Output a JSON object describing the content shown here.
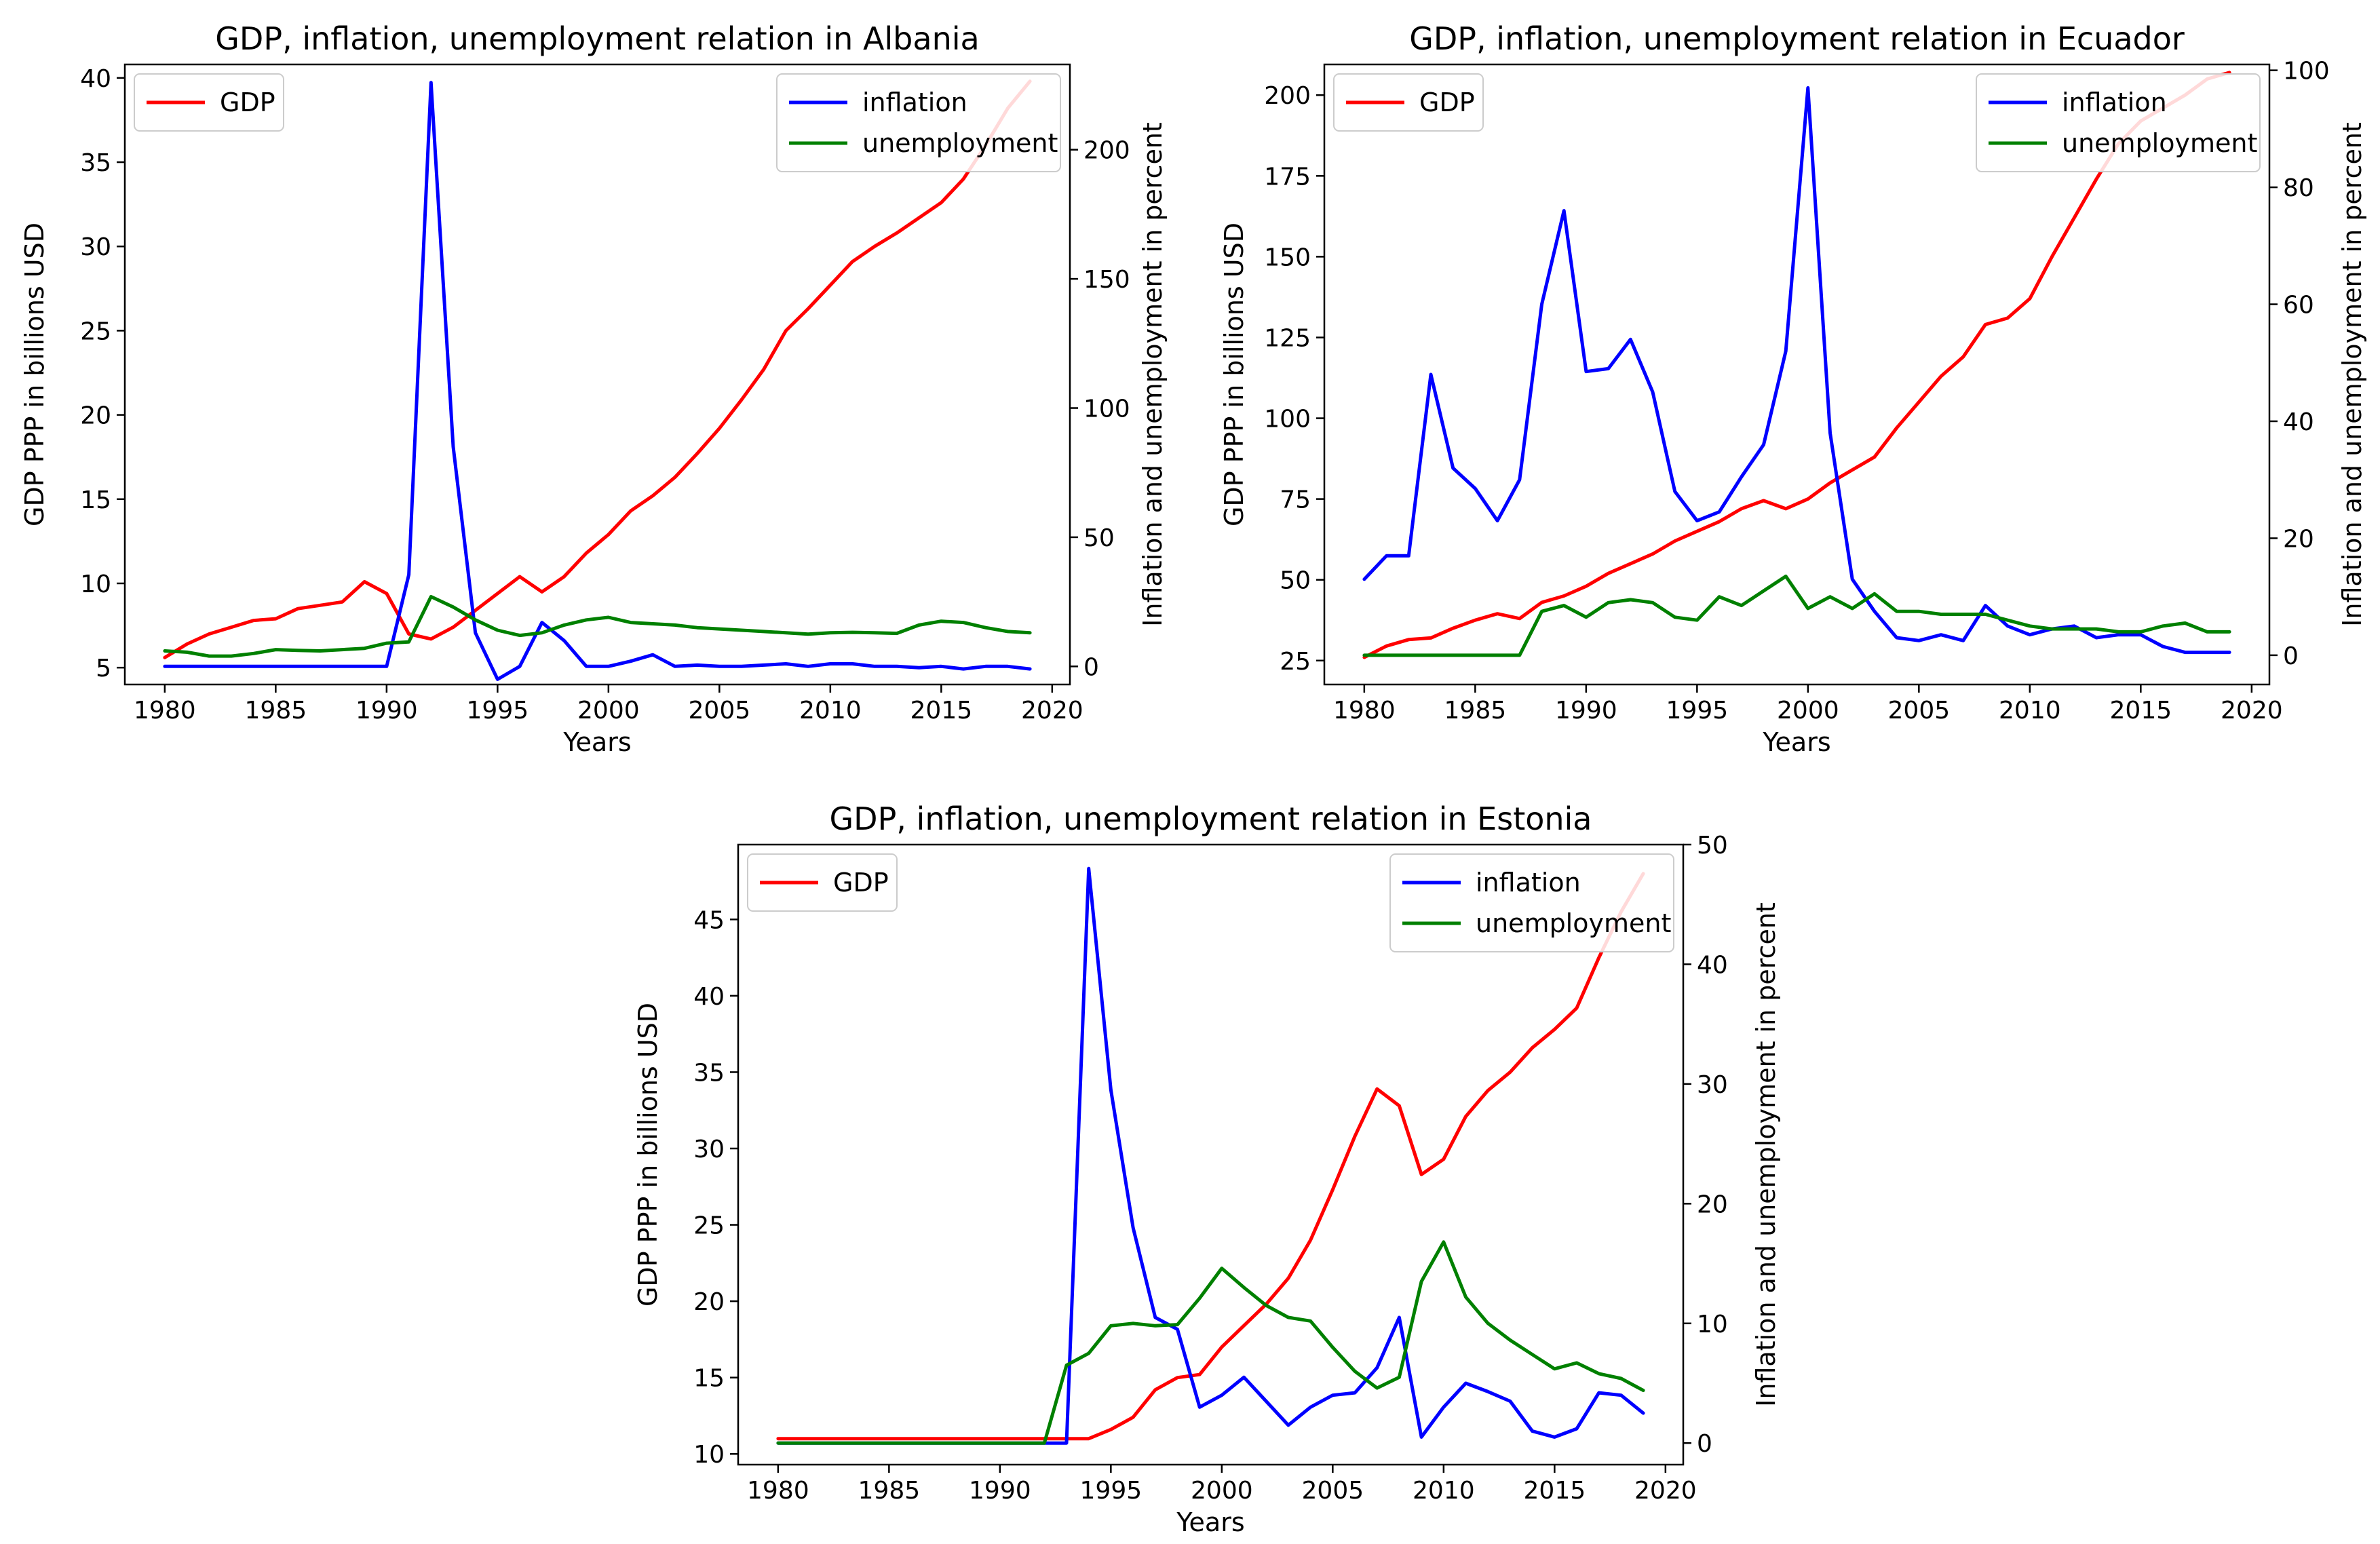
{
  "chart_data": [
    {
      "type": "line",
      "title": "GDP, inflation, unemployment relation in Albania",
      "xlabel": "Years",
      "ylabel": "GDP PPP in billions USD",
      "ylabel_right": "Inflation and unemployment in percent",
      "xlim": [
        1978.2,
        2020.8
      ],
      "ylim": [
        4.0,
        40.8
      ],
      "ylim_right": [
        -7,
        233
      ],
      "x_ticks": [
        1980,
        1985,
        1990,
        1995,
        2000,
        2005,
        2010,
        2015,
        2020
      ],
      "y_ticks": [
        5,
        10,
        15,
        20,
        25,
        30,
        35,
        40
      ],
      "y_ticks_right": [
        0,
        50,
        100,
        150,
        200
      ],
      "legend_left": {
        "position": "upper-left",
        "entries": [
          {
            "name": "GDP",
            "color": "#ff0000"
          }
        ]
      },
      "legend_right": {
        "position": "upper-right",
        "entries": [
          {
            "name": "inflation",
            "color": "#0000ff"
          },
          {
            "name": "unemployment",
            "color": "#008000"
          }
        ]
      },
      "x": [
        1980,
        1981,
        1982,
        1983,
        1984,
        1985,
        1986,
        1987,
        1988,
        1989,
        1990,
        1991,
        1992,
        1993,
        1994,
        1995,
        1996,
        1997,
        1998,
        1999,
        2000,
        2001,
        2002,
        2003,
        2004,
        2005,
        2006,
        2007,
        2008,
        2009,
        2010,
        2011,
        2012,
        2013,
        2014,
        2015,
        2016,
        2017,
        2018,
        2019
      ],
      "series": [
        {
          "name": "GDP",
          "axis": "left",
          "color": "#ff0000",
          "values": [
            5.6,
            6.4,
            7.0,
            7.4,
            7.8,
            7.9,
            8.5,
            8.7,
            8.9,
            10.1,
            9.4,
            7.0,
            6.7,
            7.4,
            8.4,
            9.4,
            10.4,
            9.5,
            10.4,
            11.8,
            12.9,
            14.3,
            15.2,
            16.3,
            17.7,
            19.2,
            20.9,
            22.7,
            25.0,
            26.3,
            27.7,
            29.1,
            30.0,
            30.8,
            31.7,
            32.6,
            34.0,
            36.0,
            38.2,
            39.8
          ]
        },
        {
          "name": "inflation",
          "axis": "right",
          "color": "#0000ff",
          "values": [
            0,
            0,
            0,
            0,
            0,
            0,
            0,
            0,
            0,
            0,
            0,
            35.5,
            226,
            85,
            13,
            -5,
            0,
            17,
            10,
            0,
            0,
            2,
            4.5,
            0,
            0.5,
            0,
            0,
            0.5,
            1,
            0,
            1,
            1,
            0,
            0,
            -0.5,
            0,
            -1,
            0,
            0,
            -1
          ]
        },
        {
          "name": "unemployment",
          "axis": "right",
          "color": "#008000",
          "values": [
            6,
            5.5,
            4,
            4,
            5,
            6.5,
            6.2,
            6,
            6.5,
            7,
            9,
            9.5,
            27,
            23,
            18,
            14,
            12,
            13,
            16,
            18,
            19,
            17,
            16.5,
            16,
            15,
            14.5,
            14,
            13.5,
            13,
            12.5,
            13,
            13.2,
            13,
            12.8,
            16,
            17.5,
            17,
            15,
            13.5,
            13
          ]
        }
      ]
    },
    {
      "type": "line",
      "title": "GDP, inflation, unemployment relation in Ecuador",
      "xlabel": "Years",
      "ylabel": "GDP PPP in billions USD",
      "ylabel_right": "Inflation and unemployment in percent",
      "xlim": [
        1978.2,
        2020.8
      ],
      "ylim": [
        17.6,
        209.5
      ],
      "ylim_right": [
        -5,
        101
      ],
      "x_ticks": [
        1980,
        1985,
        1990,
        1995,
        2000,
        2005,
        2010,
        2015,
        2020
      ],
      "y_ticks": [
        25,
        50,
        75,
        100,
        125,
        150,
        175,
        200
      ],
      "y_ticks_right": [
        0,
        20,
        40,
        60,
        80,
        100
      ],
      "legend_left": {
        "position": "upper-left",
        "entries": [
          {
            "name": "GDP",
            "color": "#ff0000"
          }
        ]
      },
      "legend_right": {
        "position": "upper-right",
        "entries": [
          {
            "name": "inflation",
            "color": "#0000ff"
          },
          {
            "name": "unemployment",
            "color": "#008000"
          }
        ]
      },
      "x": [
        1980,
        1981,
        1982,
        1983,
        1984,
        1985,
        1986,
        1987,
        1988,
        1989,
        1990,
        1991,
        1992,
        1993,
        1994,
        1995,
        1996,
        1997,
        1998,
        1999,
        2000,
        2001,
        2002,
        2003,
        2004,
        2005,
        2006,
        2007,
        2008,
        2009,
        2010,
        2011,
        2012,
        2013,
        2014,
        2015,
        2016,
        2017,
        2018,
        2019
      ],
      "series": [
        {
          "name": "GDP",
          "axis": "left",
          "color": "#ff0000",
          "values": [
            26,
            29.5,
            31.5,
            32,
            35,
            37.5,
            39.5,
            38,
            43,
            45,
            48,
            52,
            55,
            58,
            62,
            65,
            68,
            72,
            74.5,
            72,
            75,
            80,
            84,
            88,
            97,
            105,
            113,
            119,
            129,
            131,
            137,
            150,
            162,
            174,
            185,
            192,
            196,
            200,
            205,
            207
          ]
        },
        {
          "name": "inflation",
          "axis": "right",
          "color": "#0000ff",
          "values": [
            13,
            17,
            17,
            48,
            32,
            28.5,
            23,
            30,
            60,
            76,
            48.5,
            49,
            54,
            45,
            28,
            23,
            24.5,
            30.5,
            36,
            52,
            97,
            38,
            13,
            7.5,
            3,
            2.5,
            3.5,
            2.5,
            8.5,
            5,
            3.5,
            4.5,
            5,
            3,
            3.5,
            3.5,
            1.5,
            0.5,
            0.5,
            0.5
          ]
        },
        {
          "name": "unemployment",
          "axis": "right",
          "color": "#008000",
          "values": [
            0,
            0,
            0,
            0,
            0,
            0,
            0,
            0,
            7.5,
            8.5,
            6.5,
            9,
            9.5,
            9,
            6.5,
            6,
            10,
            8.5,
            11,
            13.5,
            8,
            10,
            8,
            10.5,
            7.5,
            7.5,
            7,
            7,
            7,
            6,
            5,
            4.5,
            4.5,
            4.5,
            4,
            4,
            5,
            5.5,
            4,
            4
          ]
        }
      ]
    },
    {
      "type": "line",
      "title": "GDP, inflation, unemployment relation in Estonia",
      "xlabel": "Years",
      "ylabel": "GDP PPP in billions USD",
      "ylabel_right": "Inflation and unemployment in percent",
      "xlim": [
        1978.2,
        2020.8
      ],
      "ylim": [
        9.3,
        49.9
      ],
      "ylim_right": [
        -1.8,
        50.0
      ],
      "x_ticks": [
        1980,
        1985,
        1990,
        1995,
        2000,
        2005,
        2010,
        2015,
        2020
      ],
      "y_ticks": [
        10,
        15,
        20,
        25,
        30,
        35,
        40,
        45
      ],
      "y_ticks_right": [
        0,
        10,
        20,
        30,
        40,
        50
      ],
      "legend_left": {
        "position": "upper-left",
        "entries": [
          {
            "name": "GDP",
            "color": "#ff0000"
          }
        ]
      },
      "legend_right": {
        "position": "upper-right",
        "entries": [
          {
            "name": "inflation",
            "color": "#0000ff"
          },
          {
            "name": "unemployment",
            "color": "#008000"
          }
        ]
      },
      "x": [
        1980,
        1981,
        1982,
        1983,
        1984,
        1985,
        1986,
        1987,
        1988,
        1989,
        1990,
        1991,
        1992,
        1993,
        1994,
        1995,
        1996,
        1997,
        1998,
        1999,
        2000,
        2001,
        2002,
        2003,
        2004,
        2005,
        2006,
        2007,
        2008,
        2009,
        2010,
        2011,
        2012,
        2013,
        2014,
        2015,
        2016,
        2017,
        2018,
        2019
      ],
      "series": [
        {
          "name": "GDP",
          "axis": "left",
          "color": "#ff0000",
          "values": [
            11,
            11,
            11,
            11,
            11,
            11,
            11,
            11,
            11,
            11,
            11,
            11,
            11,
            11,
            11,
            11.6,
            12.4,
            14.2,
            15,
            15.2,
            17,
            18.4,
            19.8,
            21.5,
            24,
            27.3,
            30.8,
            33.9,
            32.8,
            28.3,
            29.3,
            32.1,
            33.8,
            35,
            36.6,
            37.8,
            39.2,
            42.5,
            45.5,
            48
          ]
        },
        {
          "name": "inflation",
          "axis": "right",
          "color": "#0000ff",
          "values": [
            0,
            0,
            0,
            0,
            0,
            0,
            0,
            0,
            0,
            0,
            0,
            0,
            0,
            0,
            48,
            29.5,
            18,
            10.5,
            9.5,
            3,
            4,
            5.5,
            3.5,
            1.5,
            3,
            4,
            4.2,
            6.3,
            10.5,
            0.5,
            3,
            5,
            4.3,
            3.5,
            1,
            0.5,
            1.2,
            4.2,
            4,
            2.5
          ]
        },
        {
          "name": "unemployment",
          "axis": "right",
          "color": "#008000",
          "values": [
            0,
            0,
            0,
            0,
            0,
            0,
            0,
            0,
            0,
            0,
            0,
            0,
            0,
            6.5,
            7.5,
            9.8,
            10,
            9.8,
            9.9,
            12.1,
            14.6,
            13,
            11.5,
            10.5,
            10.2,
            8,
            6,
            4.6,
            5.5,
            13.5,
            16.8,
            12.2,
            10,
            8.6,
            7.4,
            6.2,
            6.7,
            5.8,
            5.4,
            4.4
          ]
        }
      ]
    }
  ]
}
